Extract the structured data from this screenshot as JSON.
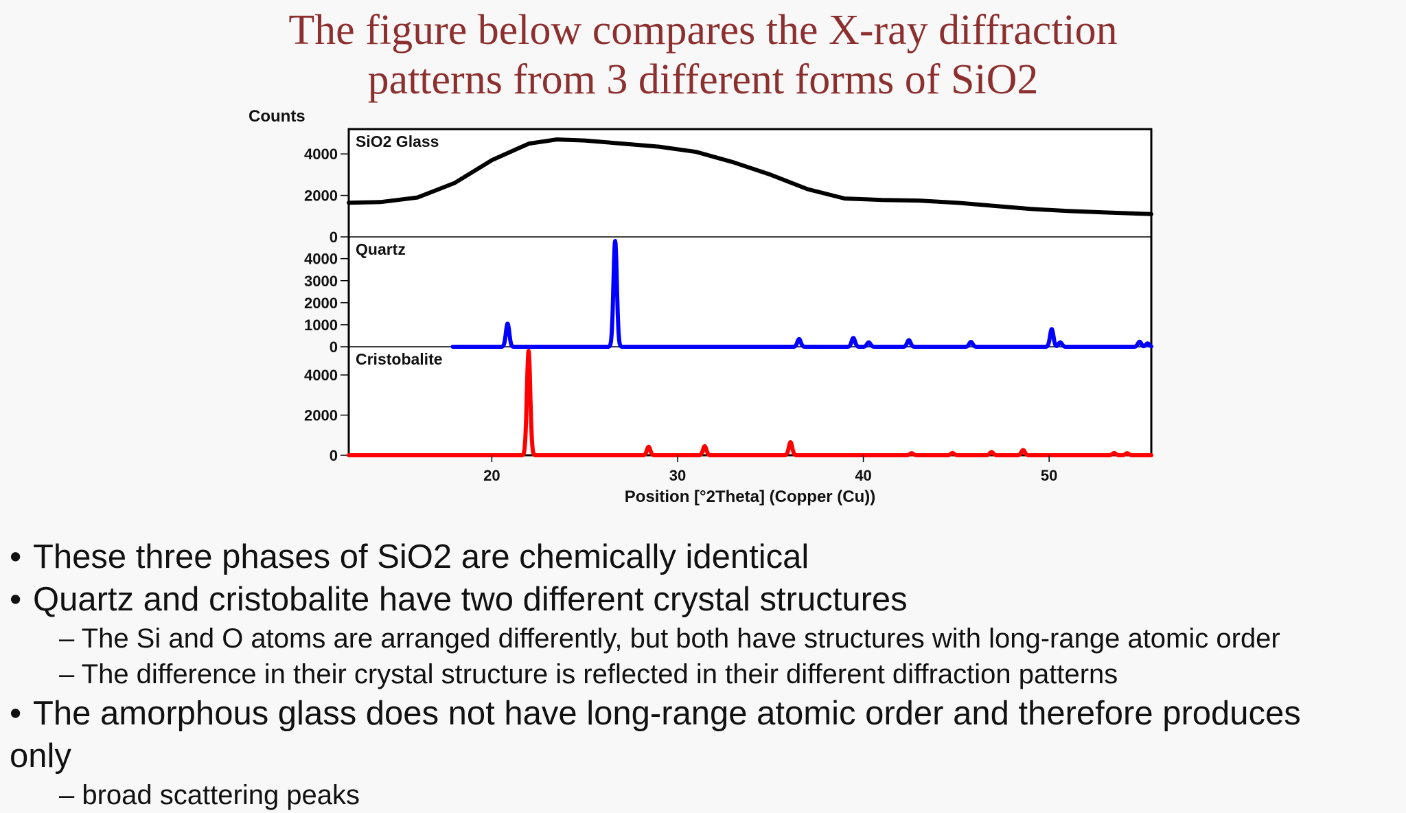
{
  "slide": {
    "title_line1": "The figure below compares the X-ray diffraction",
    "title_line2": "patterns from 3 different forms of SiO2"
  },
  "chart_data": {
    "type": "line",
    "ylabel": "Counts",
    "xlabel": "Position [°2Theta] (Copper (Cu))",
    "xlim": [
      12.3,
      55.5
    ],
    "x_ticks": [
      20,
      30,
      40,
      50
    ],
    "grid": false,
    "panels": [
      {
        "name": "SiO2 Glass",
        "color": "#000000",
        "ylim": [
          0,
          5000
        ],
        "y_ticks": [
          0,
          2000,
          4000
        ],
        "series": [
          {
            "name": "SiO2 Glass",
            "x": [
              12.3,
              14,
              16,
              18,
              20,
              22,
              23.5,
              25,
              27,
              29,
              31,
              33,
              35,
              37,
              39,
              41,
              43,
              45,
              47,
              49,
              51,
              53,
              55.5
            ],
            "y": [
              1650,
              1680,
              1900,
              2600,
              3700,
              4500,
              4700,
              4650,
              4500,
              4350,
              4100,
              3600,
              3000,
              2300,
              1850,
              1780,
              1750,
              1650,
              1500,
              1350,
              1250,
              1180,
              1100
            ]
          }
        ]
      },
      {
        "name": "Quartz",
        "color": "#0000ff",
        "ylim": [
          0,
          4800
        ],
        "y_ticks": [
          0,
          1000,
          2000,
          3000,
          4000
        ],
        "series": [
          {
            "name": "Quartz",
            "baseline": 0,
            "x_start": 17.9,
            "peaks": [
              {
                "x": 20.85,
                "y": 1050
              },
              {
                "x": 26.64,
                "y": 4800
              },
              {
                "x": 36.54,
                "y": 350
              },
              {
                "x": 39.46,
                "y": 400
              },
              {
                "x": 40.29,
                "y": 200
              },
              {
                "x": 42.45,
                "y": 300
              },
              {
                "x": 45.79,
                "y": 220
              },
              {
                "x": 50.14,
                "y": 800
              },
              {
                "x": 50.6,
                "y": 200
              },
              {
                "x": 54.87,
                "y": 230
              },
              {
                "x": 55.3,
                "y": 150
              }
            ]
          }
        ]
      },
      {
        "name": "Cristobalite",
        "color": "#ff0000",
        "ylim": [
          0,
          5200
        ],
        "y_ticks": [
          0,
          2000,
          4000
        ],
        "series": [
          {
            "name": "Cristobalite",
            "baseline": 0,
            "x_start": 12.3,
            "peaks": [
              {
                "x": 21.98,
                "y": 5200
              },
              {
                "x": 28.44,
                "y": 420
              },
              {
                "x": 31.46,
                "y": 450
              },
              {
                "x": 36.08,
                "y": 650
              },
              {
                "x": 42.6,
                "y": 100
              },
              {
                "x": 44.8,
                "y": 110
              },
              {
                "x": 46.9,
                "y": 160
              },
              {
                "x": 48.6,
                "y": 260
              },
              {
                "x": 53.5,
                "y": 110
              },
              {
                "x": 54.2,
                "y": 100
              }
            ]
          }
        ]
      }
    ]
  },
  "bullets": [
    {
      "level": 1,
      "text": "These three phases of SiO2 are chemically identical"
    },
    {
      "level": 1,
      "text": "Quartz and cristobalite have two different crystal structures"
    },
    {
      "level": 2,
      "text": "– The Si and O atoms are arranged differently, but both have structures with long-range atomic order"
    },
    {
      "level": 2,
      "text": "– The difference in their crystal structure is reflected in their different diffraction patterns"
    },
    {
      "level": 1,
      "text": "The amorphous glass does not have long-range atomic order and therefore produces"
    },
    {
      "level": 0,
      "text": "only"
    },
    {
      "level": 2,
      "text": "– broad scattering peaks"
    }
  ]
}
